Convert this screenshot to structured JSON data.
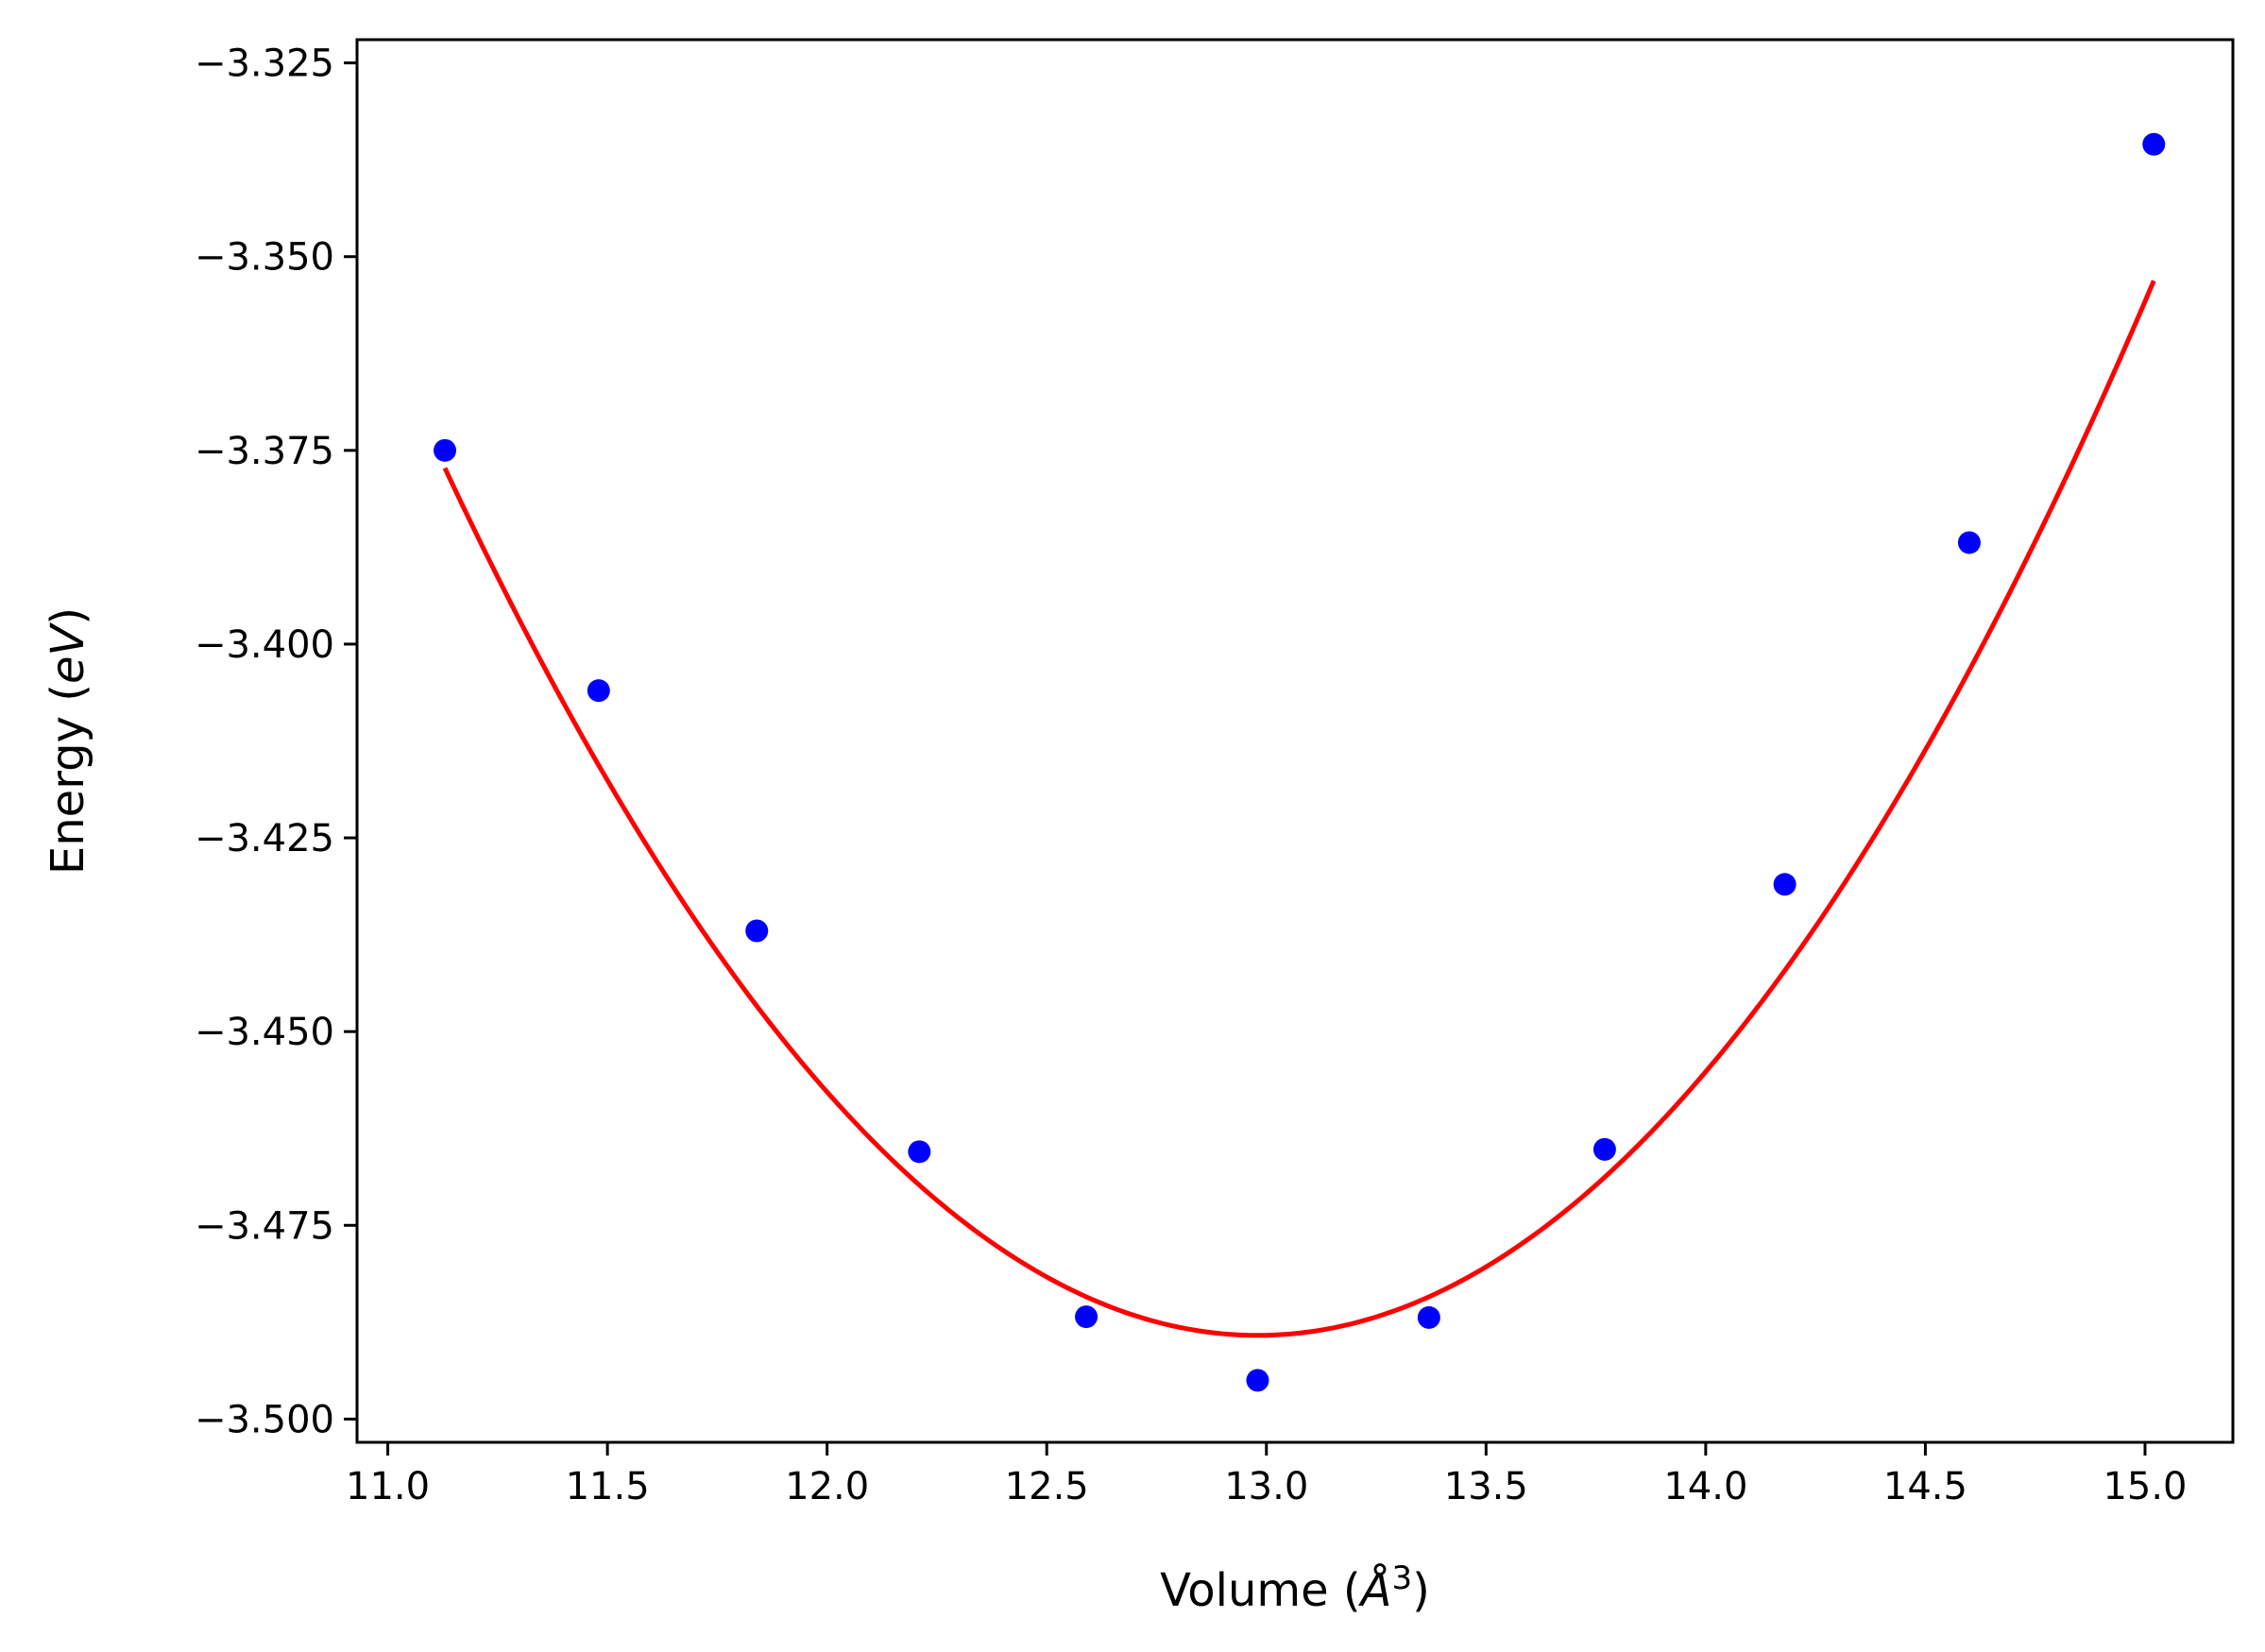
{
  "chart_data": {
    "type": "scatter",
    "xlabel": "Volume (Å³)",
    "xlabel_parts": {
      "prefix": "Volume (",
      "symbol": "Å",
      "superscript": "3",
      "suffix": ")"
    },
    "ylabel": "Energy (eV)",
    "ylabel_parts": {
      "prefix": "Energy (",
      "italic": "eV",
      "suffix": ")"
    },
    "xlim": [
      10.93,
      15.2
    ],
    "ylim": [
      -3.503,
      -3.322
    ],
    "x_ticks": [
      11.0,
      11.5,
      12.0,
      12.5,
      13.0,
      13.5,
      14.0,
      14.5,
      15.0
    ],
    "x_tick_labels": [
      "11.0",
      "11.5",
      "12.0",
      "12.5",
      "13.0",
      "13.5",
      "14.0",
      "14.5",
      "15.0"
    ],
    "y_ticks": [
      -3.325,
      -3.35,
      -3.375,
      -3.4,
      -3.425,
      -3.45,
      -3.475,
      -3.5
    ],
    "y_tick_labels": [
      "−3.325",
      "−3.350",
      "−3.375",
      "−3.400",
      "−3.425",
      "−3.450",
      "−3.475",
      "−3.500"
    ],
    "grid": false,
    "series": [
      {
        "kind": "scatter",
        "color": "#0000ff",
        "x": [
          11.13,
          11.48,
          11.84,
          12.21,
          12.59,
          12.98,
          13.37,
          13.77,
          14.18,
          14.6,
          15.02
        ],
        "y": [
          -3.375,
          -3.406,
          -3.437,
          -3.4655,
          -3.4868,
          -3.495,
          -3.4869,
          -3.4652,
          -3.431,
          -3.3869,
          -3.3355
        ]
      },
      {
        "kind": "line",
        "color": "#ff0000",
        "fit": "quadratic",
        "x_range": [
          11.13,
          15.02
        ],
        "vertex_x": 12.98,
        "vertex_y": -3.4892,
        "curvature": 0.0327
      }
    ]
  }
}
